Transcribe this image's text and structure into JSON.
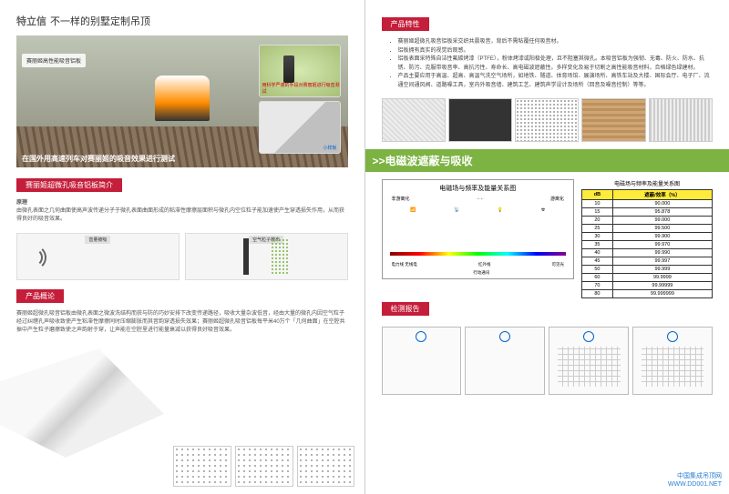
{
  "brand": {
    "name": "特立信",
    "tagline": "不一样的别墅定制吊顶"
  },
  "hero": {
    "label": "赛丽姬高性能吸音铝板",
    "caption": "在国外用高速列车对赛丽姬的吸音效果进行测试",
    "inset1": "用科学严谨的手段对赛丽姬进行吸音测试",
    "inset2": "小样板"
  },
  "sec1": {
    "title": "赛丽姬超微孔吸音铝板简介",
    "sub": "原理",
    "body": "由微孔表面之几何曲面使高声波传递分子于微孔表面曲面形成的粘滞性摩擦层面积与微孔内空位粒子能加速使产生穿透损失作用，从而获得良好的吸音效果。",
    "d1": "音量被吸",
    "d2": "空气粒子散布"
  },
  "sec2": {
    "title": "产品概论",
    "body": "赛丽姬超微孔吸音铝板由微孔表面之微波洗结构而获与防的巧妙安排下改变传递路径，吸收大量杂波低音，经由大量的微孔内因空气粒子经过纠缠孔声吸收致使产生粘滞性摩擦同时压缩膨胀而其音韵穿透损失效果；赛丽姬超微孔吸音铝板每平米40万个「几何曲面」在空腔共振中产生粒子磨擦致使之声韵射于穿，让声能在空腔里进行能量衰减以获得良好吸音效果。"
  },
  "feat": {
    "title": "产品特性",
    "items": [
      "赛丽姬超微孔吸音铝板采交织共震吸音，背后不需粘覆任何吸音材。",
      "铝板拥有真实的视觉后观感。",
      "铝板表面采特殊自洁性氟碳烤漆（PTFE），粉体烤漆或阳极处理，且不阻塞其微孔。本吸音铝板为强韧、无毒、防火、防水、抗锈、防污、克服带吸音率、高抗污性、寿命长、高电磁波遮蔽性。多样变化及易于切割之高性能吸音材料，合格绿色绿建材。",
      "产品主要应用于高温、超高、高温气洗空气场所，如地铁、隧道、体育场馆、展演场所、高铁车站及大楼、国际会厅、电子厂、流通空间通风阀、道路噪工具，室内外吸音墙、建筑工艺、建筑声学设计及场所（回音及噪音控制）等等。"
    ]
  },
  "green": ">>电磁波遮蔽与吸收",
  "chart": {
    "title": "电磁场与频率及能量关系图",
    "l1": "非游离化",
    "l2": "游离化",
    "l3": "红外线",
    "l4": "可见光",
    "l5": "电力线 无线电",
    "l6": "行动通讯"
  },
  "table": {
    "title": "电磁场与频率及能量关系图",
    "h1": "dB",
    "h2": "遮蔽/效率（%）",
    "rows": [
      [
        "10",
        "90.000"
      ],
      [
        "15",
        "95.878"
      ],
      [
        "20",
        "99.000"
      ],
      [
        "25",
        "99.500"
      ],
      [
        "30",
        "99.900"
      ],
      [
        "35",
        "99.970"
      ],
      [
        "40",
        "99.990"
      ],
      [
        "45",
        "99.997"
      ],
      [
        "50",
        "99.999"
      ],
      [
        "60",
        "99.9999"
      ],
      [
        "70",
        "99.99999"
      ],
      [
        "80",
        "99.999999"
      ]
    ]
  },
  "cert": {
    "title": "检测报告"
  },
  "wm": {
    "l1": "中国集成吊顶网",
    "l2": "WWW.DD001.NET"
  }
}
